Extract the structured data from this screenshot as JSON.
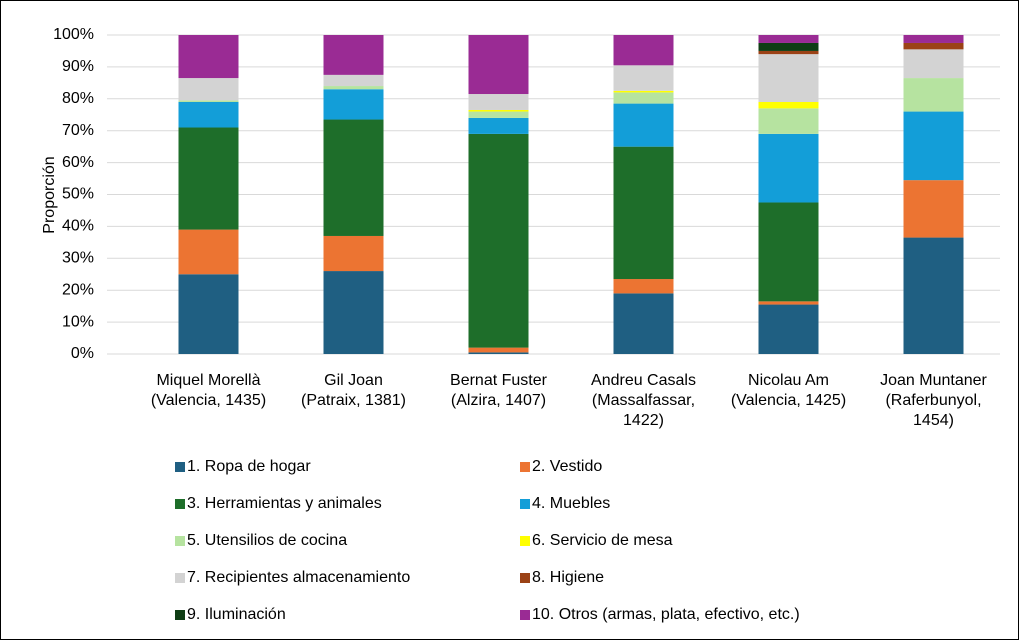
{
  "chart_data": {
    "type": "stacked_bar_100",
    "y_label": "Proporción",
    "categories": [
      [
        "Miquel Morellà",
        "(Valencia, 1435)"
      ],
      [
        "Gil Joan",
        "(Patraix, 1381)"
      ],
      [
        "Bernat Fuster",
        "(Alzira, 1407)"
      ],
      [
        "Andreu Casals",
        "(Massalfassar,",
        "1422)"
      ],
      [
        "Nicolau Am",
        "(Valencia, 1425)"
      ],
      [
        "Joan Muntaner",
        "(Raferbunyol,",
        "1454)"
      ]
    ],
    "series": [
      {
        "name": "1. Ropa de hogar",
        "color": "#1f5f82",
        "values": [
          25,
          26,
          0.5,
          19,
          15.5,
          36.5
        ]
      },
      {
        "name": "2. Vestido",
        "color": "#ec7432",
        "values": [
          14,
          11,
          1.5,
          4.5,
          1,
          18
        ]
      },
      {
        "name": "3. Herramientas y animales",
        "color": "#1e6e2a",
        "values": [
          32,
          36.5,
          67,
          41.5,
          31,
          0
        ]
      },
      {
        "name": "4. Muebles",
        "color": "#139ed8",
        "values": [
          8,
          9.5,
          5,
          13.5,
          21.5,
          21.5
        ]
      },
      {
        "name": "5. Utensilios de cocina",
        "color": "#b6e3a0",
        "values": [
          0.5,
          1,
          2,
          3.5,
          8,
          10.5
        ]
      },
      {
        "name": "6. Servicio de mesa",
        "color": "#ffff00",
        "values": [
          0,
          0,
          0.5,
          0.5,
          2,
          0
        ]
      },
      {
        "name": "7. Recipientes almacenamiento",
        "color": "#d3d3d3",
        "values": [
          7,
          3.5,
          5,
          8,
          15,
          9
        ]
      },
      {
        "name": "8. Higiene",
        "color": "#9b4216",
        "values": [
          0,
          0,
          0,
          0,
          1,
          2
        ]
      },
      {
        "name": "9. Iluminación",
        "color": "#0f3d14",
        "values": [
          0,
          0,
          0,
          0,
          2.5,
          0
        ]
      },
      {
        "name": "10. Otros (armas, plata, efectivo, etc.)",
        "color": "#9a2b94",
        "values": [
          13.5,
          12.5,
          18.5,
          9.5,
          2.5,
          2.5
        ]
      }
    ],
    "ylim": [
      0,
      100
    ],
    "yticks": [
      {
        "value": 0,
        "label": "0%"
      },
      {
        "value": 10,
        "label": "10%"
      },
      {
        "value": 20,
        "label": "20%"
      },
      {
        "value": 30,
        "label": "30%"
      },
      {
        "value": 40,
        "label": "40%"
      },
      {
        "value": 50,
        "label": "50%"
      },
      {
        "value": 60,
        "label": "60%"
      },
      {
        "value": 70,
        "label": "70%"
      },
      {
        "value": 80,
        "label": "80%"
      },
      {
        "value": 90,
        "label": "90%"
      },
      {
        "value": 100,
        "label": "100%"
      }
    ],
    "grid": true,
    "legend": "bottom"
  }
}
